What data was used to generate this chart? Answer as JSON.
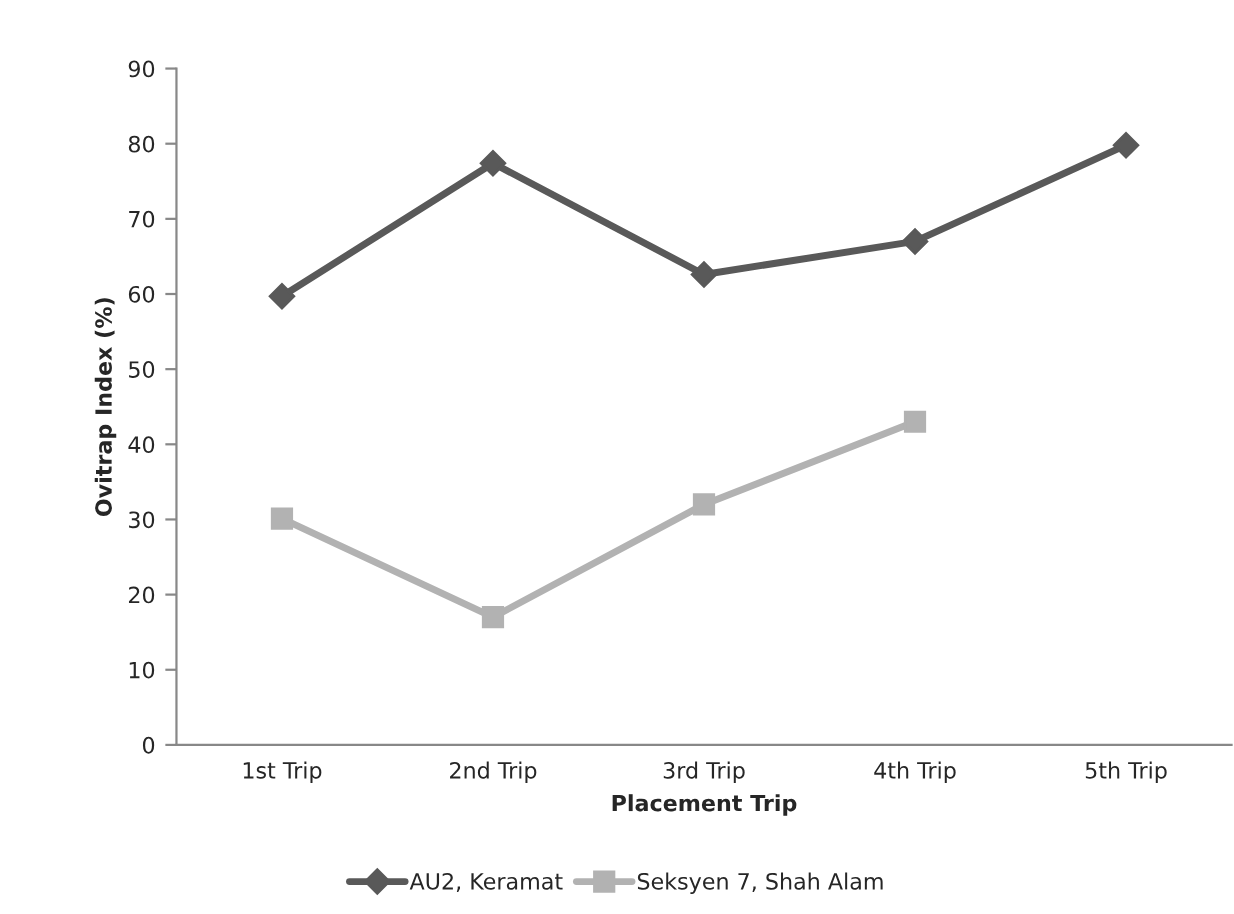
{
  "chart_data": {
    "type": "line",
    "xlabel": "Placement Trip",
    "ylabel": "Ovitrap Index (%)",
    "categories": [
      "1st Trip",
      "2nd Trip",
      "3rd Trip",
      "4th Trip",
      "5th Trip"
    ],
    "series": [
      {
        "name": "AU2, Keramat",
        "color": "#595959",
        "marker": "diamond",
        "values": [
          59.7,
          77.4,
          62.6,
          67,
          79.8
        ]
      },
      {
        "name": "Seksyen 7, Shah Alam",
        "color": "#b2b2b2",
        "marker": "square",
        "values": [
          30.1,
          17,
          32,
          43,
          null
        ]
      }
    ],
    "ylim": [
      0,
      90
    ],
    "yticks": [
      0,
      10,
      20,
      30,
      40,
      50,
      60,
      70,
      80,
      90
    ],
    "grid": false,
    "legend": "bottom",
    "line_style": "solid"
  }
}
